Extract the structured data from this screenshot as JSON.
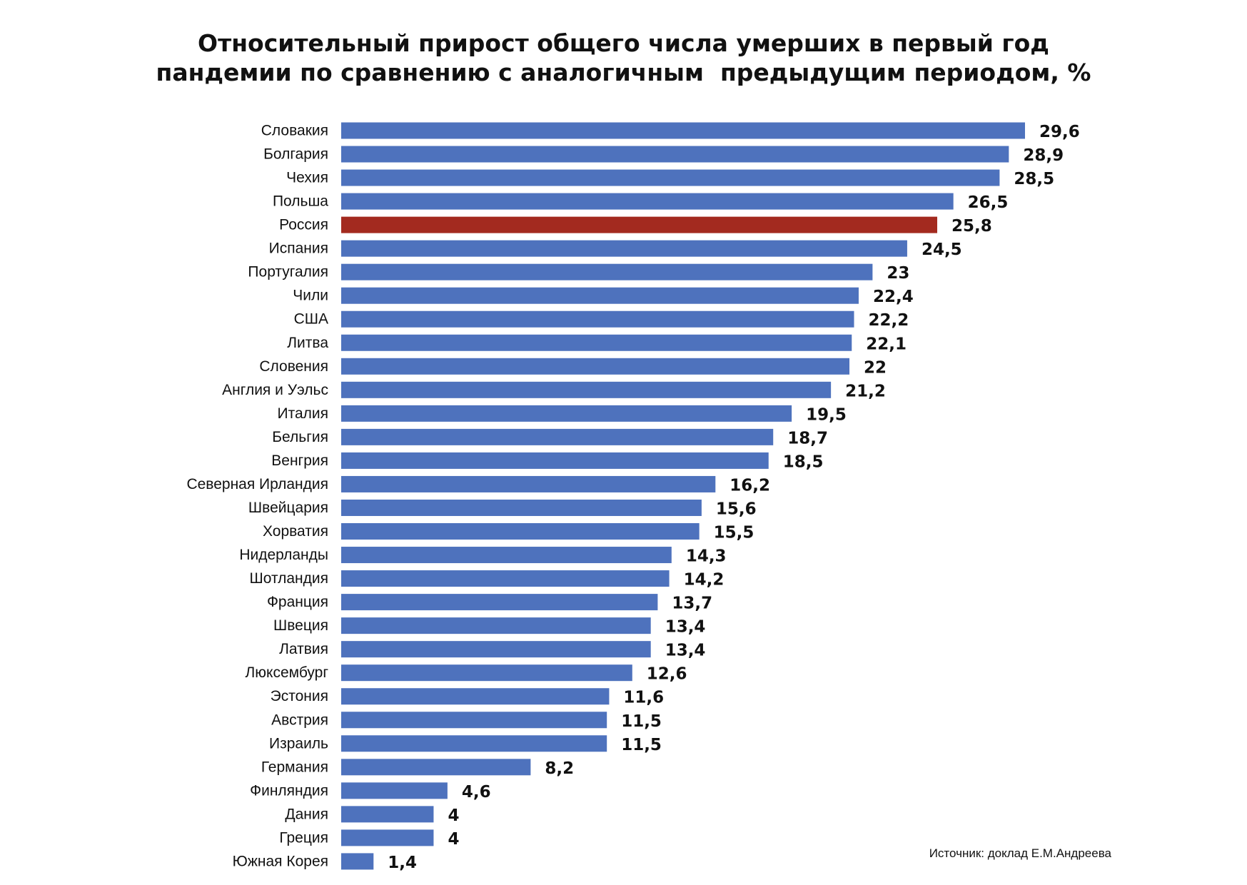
{
  "chart_data": {
    "type": "bar",
    "orientation": "horizontal",
    "title_lines": [
      "Относительный прирост общего числа умерших в первый год",
      "пандемии по сравнению с аналогичным  предыдущим периодом, %"
    ],
    "categories": [
      "Словакия",
      "Болгария",
      "Чехия",
      "Польша",
      "Россия",
      "Испания",
      "Португалия",
      "Чили",
      "США",
      "Литва",
      "Словения",
      "Англия и Уэльс",
      "Италия",
      "Бельгия",
      "Венгрия",
      "Северная Ирландия",
      "Швейцария",
      "Хорватия",
      "Нидерланды",
      "Шотландия",
      "Франция",
      "Швеция",
      "Латвия",
      "Люксембург",
      "Эстония",
      "Австрия",
      "Израиль",
      "Германия",
      "Финляндия",
      "Дания",
      "Греция",
      "Южная Корея"
    ],
    "values": [
      29.6,
      28.9,
      28.5,
      26.5,
      25.8,
      24.5,
      23,
      22.4,
      22.2,
      22.1,
      22,
      21.2,
      19.5,
      18.7,
      18.5,
      16.2,
      15.6,
      15.5,
      14.3,
      14.2,
      13.7,
      13.4,
      13.4,
      12.6,
      11.6,
      11.5,
      11.5,
      8.2,
      4.6,
      4,
      4,
      1.4
    ],
    "value_labels": [
      "29,6",
      "28,9",
      "28,5",
      "26,5",
      "25,8",
      "24,5",
      "23",
      "22,4",
      "22,2",
      "22,1",
      "22",
      "21,2",
      "19,5",
      "18,7",
      "18,5",
      "16,2",
      "15,6",
      "15,5",
      "14,3",
      "14,2",
      "13,7",
      "13,4",
      "13,4",
      "12,6",
      "11,6",
      "11,5",
      "11,5",
      "8,2",
      "4,6",
      "4",
      "4",
      "1,4"
    ],
    "highlight": "Россия",
    "xlim": [
      0,
      29.6
    ],
    "grid": false,
    "legend": "none",
    "colors": {
      "bar": "#4e72bd",
      "highlight_bar": "#a32a1f",
      "label": "#111111",
      "highlight_label": "#a32a1f"
    }
  },
  "source": "Источник: доклад Е.М.Андреева"
}
